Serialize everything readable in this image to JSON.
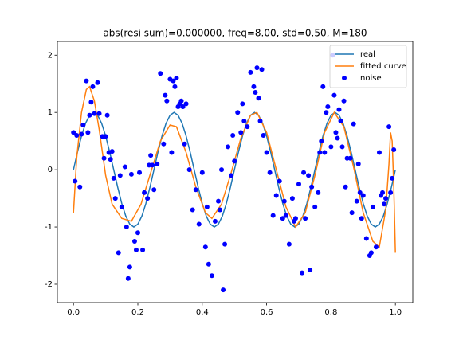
{
  "chart_data": {
    "type": "line",
    "title": "abs(resi sum)=0.000000, freq=8.00, std=0.50, M=180",
    "xlim": [
      -0.05,
      1.054
    ],
    "ylim": [
      -2.32,
      2.24
    ],
    "xticks": [
      {
        "value": 0,
        "label": "0.0"
      },
      {
        "value": 0.2,
        "label": "0.2"
      },
      {
        "value": 0.4,
        "label": "0.4"
      },
      {
        "value": 0.6,
        "label": "0.6"
      },
      {
        "value": 0.8,
        "label": "0.8"
      },
      {
        "value": 1,
        "label": "1.0"
      }
    ],
    "yticks": [
      -2,
      -1,
      0,
      1,
      2
    ],
    "legend": "upper right",
    "series": [
      {
        "name": "real",
        "type": "line",
        "color": "#1f77b4",
        "x": [
          0,
          0.0125,
          0.025,
          0.0375,
          0.05,
          0.0625,
          0.075,
          0.0875,
          0.1,
          0.1125,
          0.125,
          0.1375,
          0.15,
          0.1625,
          0.175,
          0.1875,
          0.2,
          0.2125,
          0.225,
          0.2375,
          0.25,
          0.2625,
          0.275,
          0.2875,
          0.3,
          0.3125,
          0.325,
          0.3375,
          0.35,
          0.3625,
          0.375,
          0.3875,
          0.4,
          0.4125,
          0.425,
          0.4375,
          0.45,
          0.4625,
          0.475,
          0.4875,
          0.5,
          0.5125,
          0.525,
          0.5375,
          0.55,
          0.5625,
          0.575,
          0.5875,
          0.6,
          0.6125,
          0.625,
          0.6375,
          0.65,
          0.6625,
          0.675,
          0.6875,
          0.7,
          0.7125,
          0.725,
          0.7375,
          0.75,
          0.7625,
          0.775,
          0.7875,
          0.8,
          0.8125,
          0.825,
          0.8375,
          0.85,
          0.8625,
          0.875,
          0.8875,
          0.9,
          0.9125,
          0.925,
          0.9375,
          0.95,
          0.9625,
          0.975,
          0.9875,
          1
        ],
        "values": [
          0,
          0.309,
          0.588,
          0.809,
          0.951,
          1,
          0.951,
          0.809,
          0.588,
          0.309,
          0,
          -0.309,
          -0.588,
          -0.809,
          -0.951,
          -1,
          -0.951,
          -0.809,
          -0.588,
          -0.309,
          0,
          0.309,
          0.588,
          0.809,
          0.951,
          1,
          0.951,
          0.809,
          0.588,
          0.309,
          0,
          -0.309,
          -0.588,
          -0.809,
          -0.951,
          -1,
          -0.951,
          -0.809,
          -0.588,
          -0.309,
          0,
          0.309,
          0.588,
          0.809,
          0.951,
          1,
          0.951,
          0.809,
          0.588,
          0.309,
          0,
          -0.309,
          -0.588,
          -0.809,
          -0.951,
          -1,
          -0.951,
          -0.809,
          -0.588,
          -0.309,
          0,
          0.309,
          0.588,
          0.809,
          0.951,
          1,
          0.951,
          0.809,
          0.588,
          0.309,
          0,
          -0.309,
          -0.588,
          -0.809,
          -0.951,
          -1,
          -0.951,
          -0.809,
          -0.588,
          -0.309,
          0
        ]
      },
      {
        "name": "fitted curve",
        "type": "line",
        "color": "#ff7f0e",
        "x": [
          0,
          0.01,
          0.025,
          0.04,
          0.05,
          0.065,
          0.08,
          0.1,
          0.12,
          0.15,
          0.18,
          0.21,
          0.24,
          0.27,
          0.3,
          0.32,
          0.35,
          0.38,
          0.41,
          0.43,
          0.46,
          0.49,
          0.52,
          0.55,
          0.57,
          0.6,
          0.63,
          0.66,
          0.69,
          0.72,
          0.75,
          0.78,
          0.81,
          0.84,
          0.87,
          0.9,
          0.93,
          0.95,
          0.97,
          0.98,
          0.985,
          0.99,
          0.995,
          1
        ],
        "values": [
          -0.75,
          0.2,
          1.0,
          1.4,
          1.45,
          1.2,
          0.7,
          -0.1,
          -0.6,
          -0.85,
          -0.9,
          -0.6,
          -0.05,
          0.5,
          0.78,
          0.75,
          0.3,
          -0.3,
          -0.75,
          -0.85,
          -0.6,
          -0.05,
          0.55,
          0.95,
          1.0,
          0.65,
          0.0,
          -0.65,
          -1.0,
          -0.75,
          -0.1,
          0.65,
          1.0,
          0.75,
          0.05,
          -0.75,
          -1.25,
          -1.35,
          -0.7,
          0.1,
          0.65,
          0.5,
          -0.3,
          -1.45
        ]
      },
      {
        "name": "noise",
        "type": "scatter",
        "color": "#0000ff",
        "x": [
          0,
          0.005,
          0.01,
          0.02,
          0.025,
          0.03,
          0.04,
          0.045,
          0.05,
          0.055,
          0.06,
          0.065,
          0.075,
          0.08,
          0.09,
          0.095,
          0.1,
          0.105,
          0.11,
          0.115,
          0.12,
          0.125,
          0.13,
          0.14,
          0.145,
          0.15,
          0.16,
          0.165,
          0.17,
          0.175,
          0.18,
          0.19,
          0.195,
          0.2,
          0.205,
          0.215,
          0.22,
          0.23,
          0.235,
          0.24,
          0.245,
          0.25,
          0.26,
          0.27,
          0.28,
          0.285,
          0.29,
          0.3,
          0.305,
          0.31,
          0.315,
          0.32,
          0.325,
          0.33,
          0.335,
          0.34,
          0.345,
          0.35,
          0.36,
          0.37,
          0.38,
          0.39,
          0.4,
          0.41,
          0.415,
          0.42,
          0.43,
          0.44,
          0.45,
          0.455,
          0.46,
          0.465,
          0.47,
          0.48,
          0.49,
          0.495,
          0.5,
          0.51,
          0.52,
          0.525,
          0.53,
          0.54,
          0.55,
          0.56,
          0.565,
          0.57,
          0.575,
          0.58,
          0.585,
          0.59,
          0.6,
          0.61,
          0.62,
          0.63,
          0.64,
          0.65,
          0.655,
          0.66,
          0.67,
          0.68,
          0.685,
          0.69,
          0.7,
          0.71,
          0.715,
          0.72,
          0.73,
          0.735,
          0.74,
          0.75,
          0.76,
          0.765,
          0.77,
          0.775,
          0.78,
          0.785,
          0.79,
          0.8,
          0.805,
          0.81,
          0.815,
          0.82,
          0.825,
          0.83,
          0.835,
          0.84,
          0.845,
          0.85,
          0.86,
          0.865,
          0.87,
          0.88,
          0.885,
          0.89,
          0.895,
          0.9,
          0.91,
          0.92,
          0.925,
          0.93,
          0.94,
          0.95,
          0.955,
          0.96,
          0.965,
          0.97,
          0.98,
          0.985,
          0.99,
          0.995
        ],
        "values": [
          0.65,
          -0.2,
          0.6,
          -0.3,
          0.62,
          0.78,
          1.55,
          0.65,
          0.95,
          1.18,
          1.45,
          0.98,
          1.52,
          0.98,
          0.58,
          0.2,
          0.58,
          0.95,
          0.3,
          0.18,
          0.32,
          -0.15,
          -0.5,
          -1.45,
          -0.1,
          -0.65,
          0.05,
          -1.0,
          -1.9,
          -1.7,
          -0.08,
          -1.25,
          -1.4,
          -1.1,
          -0.05,
          -1.4,
          -0.4,
          -0.5,
          0.08,
          0.25,
          0.08,
          -0.35,
          0.1,
          1.68,
          0.45,
          1.3,
          1.2,
          1.58,
          0.3,
          1.55,
          1.45,
          1.6,
          1.1,
          1.15,
          1.2,
          1.1,
          0.45,
          1.15,
          0.0,
          -0.7,
          -0.35,
          -0.95,
          -0.05,
          -1.35,
          -0.65,
          -1.65,
          -1.85,
          -0.9,
          -0.55,
          -0.7,
          0.0,
          -2.1,
          -1.3,
          0.4,
          -0.1,
          0.6,
          0.15,
          1.0,
          0.65,
          1.15,
          0.85,
          0.75,
          1.7,
          1.45,
          1.35,
          1.78,
          1.25,
          0.85,
          1.75,
          0.6,
          0.3,
          -0.05,
          -0.8,
          -0.45,
          -0.2,
          -0.85,
          -0.55,
          -0.8,
          -1.3,
          -0.5,
          -0.9,
          -0.85,
          -0.25,
          -1.8,
          -0.05,
          -0.85,
          -0.1,
          -1.75,
          -0.3,
          -0.65,
          -0.4,
          0.3,
          0.5,
          1.45,
          0.3,
          1.0,
          1.1,
          0.4,
          2.0,
          1.3,
          0.65,
          0.55,
          1.05,
          0.85,
          0.4,
          1.2,
          -0.3,
          0.2,
          0.2,
          -0.75,
          0.8,
          -0.55,
          0.1,
          -0.4,
          -0.85,
          -0.45,
          -1.2,
          -1.5,
          -1.45,
          -0.65,
          -1.35,
          0.3,
          -0.45,
          -0.4,
          -0.6,
          -0.5,
          0.75,
          -0.4,
          -0.15,
          0.35
        ]
      }
    ]
  }
}
